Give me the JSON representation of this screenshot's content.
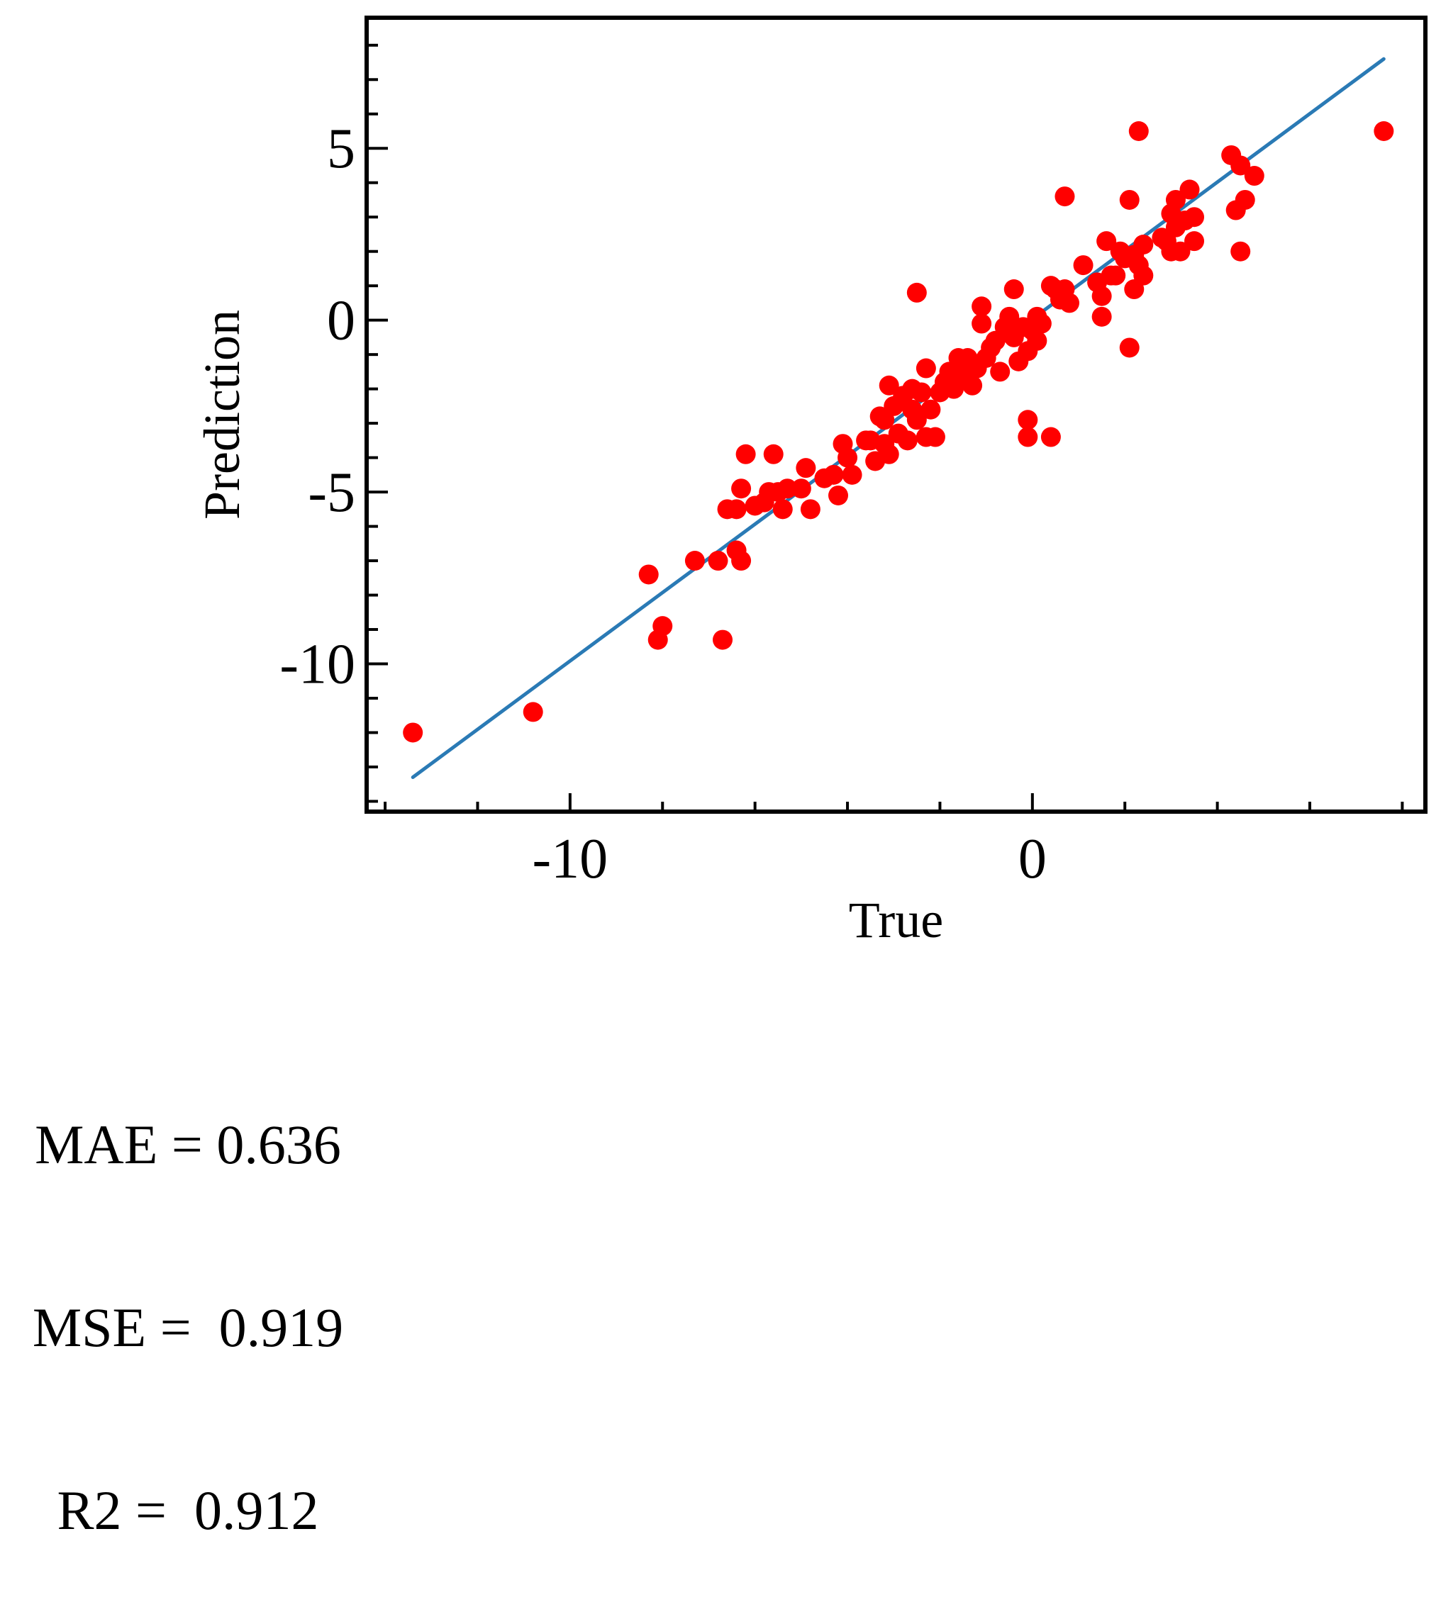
{
  "chart_data": {
    "type": "scatter",
    "xlabel": "True",
    "ylabel": "Prediction",
    "xlim": [
      -14.4,
      8.5
    ],
    "ylim": [
      -14.3,
      8.8
    ],
    "x_ticks": [
      -10,
      0
    ],
    "x_tick_labels": [
      "-10",
      "0"
    ],
    "y_ticks": [
      -10,
      -5,
      0,
      5
    ],
    "y_tick_labels": [
      "-10",
      "-5",
      "0",
      "5"
    ],
    "grid": false,
    "legend": "none",
    "colors": {
      "points": "#ff0000",
      "fit_line": "#2a7ab5",
      "axes": "#000000"
    },
    "fit_line": {
      "x": [
        -13.4,
        7.6
      ],
      "y": [
        -13.3,
        7.6
      ]
    },
    "points": [
      {
        "x": -13.4,
        "y": -12.0
      },
      {
        "x": -10.8,
        "y": -11.4
      },
      {
        "x": -8.3,
        "y": -7.4
      },
      {
        "x": -8.1,
        "y": -9.3
      },
      {
        "x": -8.0,
        "y": -8.9
      },
      {
        "x": -7.3,
        "y": -7.0
      },
      {
        "x": -6.8,
        "y": -7.0
      },
      {
        "x": -6.7,
        "y": -9.3
      },
      {
        "x": -6.6,
        "y": -5.5
      },
      {
        "x": -6.4,
        "y": -5.5
      },
      {
        "x": -6.4,
        "y": -6.7
      },
      {
        "x": -6.3,
        "y": -7.0
      },
      {
        "x": -6.3,
        "y": -4.9
      },
      {
        "x": -6.2,
        "y": -3.9
      },
      {
        "x": -6.0,
        "y": -5.4
      },
      {
        "x": -5.8,
        "y": -5.3
      },
      {
        "x": -5.7,
        "y": -5.0
      },
      {
        "x": -5.6,
        "y": -3.9
      },
      {
        "x": -5.5,
        "y": -5.0
      },
      {
        "x": -5.4,
        "y": -5.5
      },
      {
        "x": -5.3,
        "y": -4.9
      },
      {
        "x": -5.0,
        "y": -4.9
      },
      {
        "x": -4.9,
        "y": -4.3
      },
      {
        "x": -4.8,
        "y": -5.5
      },
      {
        "x": -4.5,
        "y": -4.6
      },
      {
        "x": -4.3,
        "y": -4.5
      },
      {
        "x": -4.2,
        "y": -5.1
      },
      {
        "x": -4.1,
        "y": -3.6
      },
      {
        "x": -4.0,
        "y": -4.0
      },
      {
        "x": -3.9,
        "y": -4.5
      },
      {
        "x": -3.6,
        "y": -3.5
      },
      {
        "x": -3.5,
        "y": -3.5
      },
      {
        "x": -3.4,
        "y": -4.1
      },
      {
        "x": -3.3,
        "y": -2.8
      },
      {
        "x": -3.2,
        "y": -3.6
      },
      {
        "x": -3.2,
        "y": -2.9
      },
      {
        "x": -3.1,
        "y": -1.9
      },
      {
        "x": -3.1,
        "y": -3.9
      },
      {
        "x": -3.0,
        "y": -2.5
      },
      {
        "x": -2.9,
        "y": -3.3
      },
      {
        "x": -2.8,
        "y": -2.2
      },
      {
        "x": -2.7,
        "y": -3.5
      },
      {
        "x": -2.6,
        "y": -2.0
      },
      {
        "x": -2.6,
        "y": -2.6
      },
      {
        "x": -2.5,
        "y": 0.8
      },
      {
        "x": -2.5,
        "y": -2.9
      },
      {
        "x": -2.4,
        "y": -2.1
      },
      {
        "x": -2.3,
        "y": -3.4
      },
      {
        "x": -2.3,
        "y": -1.4
      },
      {
        "x": -2.2,
        "y": -2.6
      },
      {
        "x": -2.1,
        "y": -3.4
      },
      {
        "x": -2.0,
        "y": -2.1
      },
      {
        "x": -1.9,
        "y": -1.8
      },
      {
        "x": -1.8,
        "y": -1.5
      },
      {
        "x": -1.7,
        "y": -2.0
      },
      {
        "x": -1.6,
        "y": -1.1
      },
      {
        "x": -1.5,
        "y": -1.7
      },
      {
        "x": -1.5,
        "y": -1.4
      },
      {
        "x": -1.4,
        "y": -1.1
      },
      {
        "x": -1.3,
        "y": -1.9
      },
      {
        "x": -1.2,
        "y": -1.4
      },
      {
        "x": -1.1,
        "y": 0.4
      },
      {
        "x": -1.1,
        "y": -0.1
      },
      {
        "x": -1.0,
        "y": -1.1
      },
      {
        "x": -0.9,
        "y": -0.8
      },
      {
        "x": -0.8,
        "y": -0.6
      },
      {
        "x": -0.7,
        "y": -1.5
      },
      {
        "x": -0.6,
        "y": -0.2
      },
      {
        "x": -0.5,
        "y": 0.1
      },
      {
        "x": -0.4,
        "y": -0.5
      },
      {
        "x": -0.4,
        "y": 0.9
      },
      {
        "x": -0.3,
        "y": -1.2
      },
      {
        "x": -0.2,
        "y": -0.2
      },
      {
        "x": -0.1,
        "y": -0.9
      },
      {
        "x": -0.1,
        "y": -2.9
      },
      {
        "x": -0.1,
        "y": -3.4
      },
      {
        "x": 0.0,
        "y": -0.3
      },
      {
        "x": 0.1,
        "y": -0.6
      },
      {
        "x": 0.1,
        "y": 0.1
      },
      {
        "x": 0.2,
        "y": -0.1
      },
      {
        "x": 0.4,
        "y": 1.0
      },
      {
        "x": 0.4,
        "y": -3.4
      },
      {
        "x": 0.5,
        "y": 0.9
      },
      {
        "x": 0.6,
        "y": 0.6
      },
      {
        "x": 0.7,
        "y": 0.9
      },
      {
        "x": 0.7,
        "y": 3.6
      },
      {
        "x": 0.8,
        "y": 0.5
      },
      {
        "x": 1.1,
        "y": 1.6
      },
      {
        "x": 1.4,
        "y": 1.1
      },
      {
        "x": 1.5,
        "y": 0.1
      },
      {
        "x": 1.5,
        "y": 0.7
      },
      {
        "x": 1.6,
        "y": 2.3
      },
      {
        "x": 1.7,
        "y": 1.3
      },
      {
        "x": 1.8,
        "y": 1.3
      },
      {
        "x": 1.9,
        "y": 2.0
      },
      {
        "x": 2.0,
        "y": 1.8
      },
      {
        "x": 2.1,
        "y": 3.5
      },
      {
        "x": 2.1,
        "y": -0.8
      },
      {
        "x": 2.2,
        "y": 1.9
      },
      {
        "x": 2.2,
        "y": 0.9
      },
      {
        "x": 2.3,
        "y": 5.5
      },
      {
        "x": 2.3,
        "y": 1.6
      },
      {
        "x": 2.4,
        "y": 1.3
      },
      {
        "x": 2.4,
        "y": 2.2
      },
      {
        "x": 2.8,
        "y": 2.4
      },
      {
        "x": 2.9,
        "y": 2.3
      },
      {
        "x": 3.0,
        "y": 3.1
      },
      {
        "x": 3.0,
        "y": 2.0
      },
      {
        "x": 3.1,
        "y": 3.5
      },
      {
        "x": 3.1,
        "y": 2.7
      },
      {
        "x": 3.2,
        "y": 2.0
      },
      {
        "x": 3.3,
        "y": 2.9
      },
      {
        "x": 3.4,
        "y": 3.8
      },
      {
        "x": 3.5,
        "y": 2.3
      },
      {
        "x": 3.5,
        "y": 3.0
      },
      {
        "x": 4.3,
        "y": 4.8
      },
      {
        "x": 4.4,
        "y": 3.2
      },
      {
        "x": 4.5,
        "y": 4.5
      },
      {
        "x": 4.5,
        "y": 2.0
      },
      {
        "x": 4.6,
        "y": 3.5
      },
      {
        "x": 4.8,
        "y": 4.2
      },
      {
        "x": 7.6,
        "y": 5.5
      }
    ]
  },
  "metrics": {
    "mae": "MAE = 0.636",
    "mse": "MSE =  0.919",
    "r2": "R2 =  0.912"
  }
}
